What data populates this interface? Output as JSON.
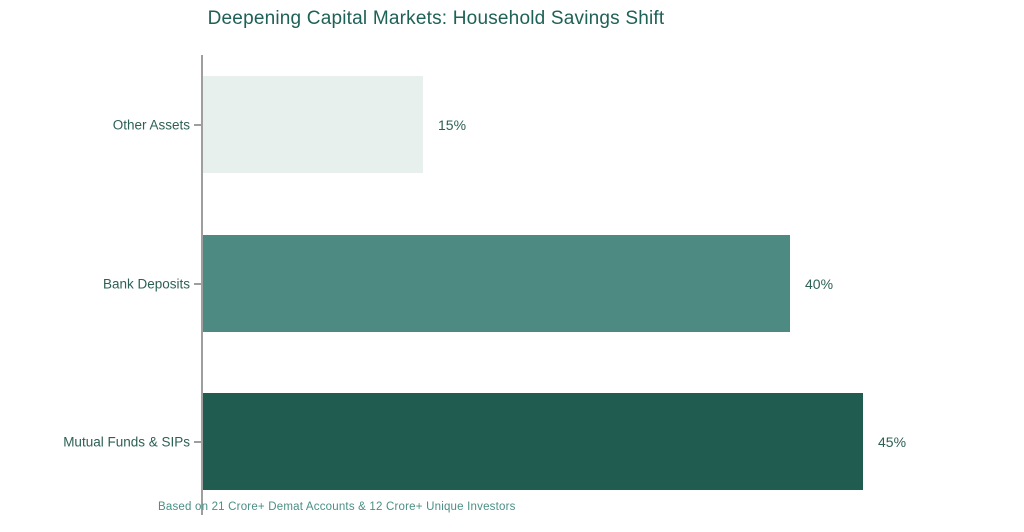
{
  "chart_data": {
    "type": "bar",
    "orientation": "horizontal",
    "title": "Deepening Capital Markets: Household Savings Shift",
    "footnote": "Based on 21 Crore+ Demat Accounts & 12 Crore+ Unique Investors",
    "categories": [
      "Other Assets",
      "Bank Deposits",
      "Mutual Funds & SIPs"
    ],
    "values": [
      15,
      40,
      45
    ],
    "value_labels": [
      "15%",
      "40%",
      "45%"
    ],
    "value_suffix": "%",
    "xlim": [
      0,
      55
    ],
    "x_axis_visible": false,
    "grid": false,
    "legend": false,
    "bar_colors": [
      "#e8f0ee",
      "#4d8a82",
      "#215c50"
    ],
    "text_colors": {
      "title": "#1e6156",
      "category_label": "#2d6055",
      "value_label": "#2d6055",
      "footnote": "#4a9084",
      "axis_line": "#9e9e9e"
    }
  }
}
